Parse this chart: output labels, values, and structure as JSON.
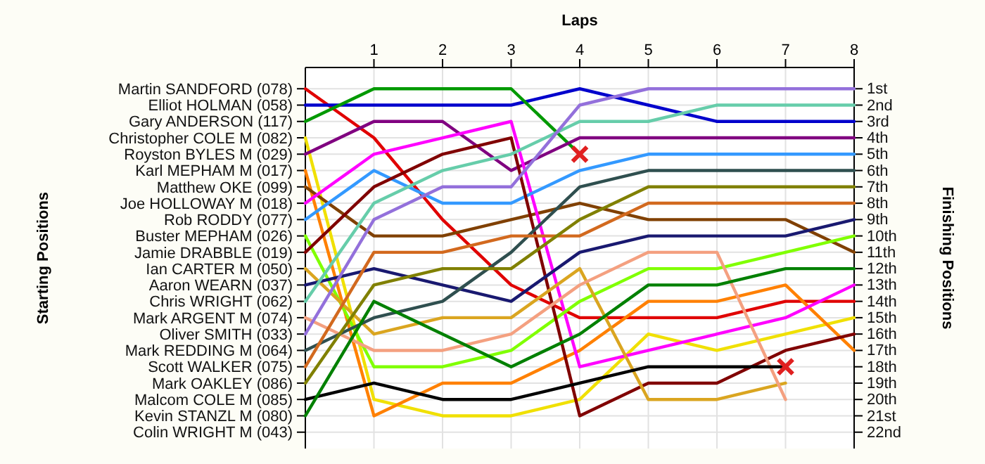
{
  "chart_data": {
    "type": "line",
    "xlabel": "Laps",
    "ylabel": "Finishing Positions",
    "x": [
      0,
      1,
      2,
      3,
      4,
      5,
      6,
      7,
      8
    ],
    "xlim": [
      0,
      8
    ],
    "xticks": [
      1,
      2,
      3,
      4,
      5,
      6,
      7,
      8
    ],
    "annotations": [
      "Starting Positions",
      "Martin SANDFORD (078)",
      "Elliot HOLMAN (058)",
      "Gary ANDERSON (117)",
      "Christopher COLE M (082)",
      "Royston BYLES M (029)",
      "Karl MEPHAM M (017)",
      "Matthew OKE (099)",
      "Joe HOLLOWAY M (018)",
      "Rob RODDY (077)",
      "Buster MEPHAM (026)",
      "Jamie DRABBLE (019)",
      "Ian CARTER M (050)",
      "Aaron WEARN (037)",
      "Chris WRIGHT (062)",
      "Mark ARGENT M (074)",
      "Oliver SMITH (033)",
      "Mark REDDING M (064)",
      "Scott WALKER (075)",
      "Mark OAKLEY (086)",
      "Malcom COLE M (085)",
      "Kevin STANZL M (080)",
      "Colin WRIGHT M (043)"
    ],
    "ylim": [
      23,
      -0.3
    ],
    "yticks": [
      {
        "value": 1,
        "label": "1st"
      },
      {
        "value": 2,
        "label": "2nd"
      },
      {
        "value": 3,
        "label": "3rd"
      },
      {
        "value": 4,
        "label": "4th"
      },
      {
        "value": 5,
        "label": "5th"
      },
      {
        "value": 6,
        "label": "6th"
      },
      {
        "value": 7,
        "label": "7th"
      },
      {
        "value": 8,
        "label": "8th"
      },
      {
        "value": 9,
        "label": "9th"
      },
      {
        "value": 10,
        "label": "10th"
      },
      {
        "value": 11,
        "label": "11th"
      },
      {
        "value": 12,
        "label": "12th"
      },
      {
        "value": 13,
        "label": "13th"
      },
      {
        "value": 14,
        "label": "14th"
      },
      {
        "value": 15,
        "label": "15th"
      },
      {
        "value": 16,
        "label": "16th"
      },
      {
        "value": 17,
        "label": "17th"
      },
      {
        "value": 18,
        "label": "18th"
      },
      {
        "value": 19,
        "label": "19th"
      },
      {
        "value": 20,
        "label": "20th"
      },
      {
        "value": 21,
        "label": "21st"
      },
      {
        "value": 22,
        "label": "22nd"
      }
    ],
    "grid": true,
    "series": [
      {
        "color": "#e00000",
        "values": [
          1,
          4,
          9,
          13,
          15,
          15,
          15,
          14,
          14
        ]
      },
      {
        "color": "#0000cc",
        "values": [
          2,
          2,
          2,
          2,
          1,
          2,
          3,
          3,
          3
        ]
      },
      {
        "color": "#009900",
        "values": [
          3,
          1,
          1,
          1,
          5,
          null,
          null,
          null,
          null
        ]
      },
      {
        "color": "#f0e000",
        "values": [
          4,
          20,
          21,
          21,
          20,
          16,
          17,
          16,
          15
        ]
      },
      {
        "color": "#800080",
        "values": [
          5,
          3,
          3,
          6,
          4,
          4,
          4,
          4,
          4
        ]
      },
      {
        "color": "#ff8000",
        "values": [
          6,
          21,
          19,
          19,
          17,
          14,
          14,
          13,
          17
        ]
      },
      {
        "color": "#804000",
        "values": [
          7,
          10,
          10,
          9,
          8,
          9,
          9,
          9,
          11
        ]
      },
      {
        "color": "#ff00ff",
        "values": [
          8,
          5,
          4,
          3,
          18,
          17,
          16,
          15,
          13
        ]
      },
      {
        "color": "#3399ff",
        "values": [
          9,
          6,
          8,
          8,
          6,
          5,
          5,
          5,
          5
        ]
      },
      {
        "color": "#80ff00",
        "values": [
          10,
          18,
          18,
          17,
          14,
          12,
          12,
          11,
          10
        ]
      },
      {
        "color": "#800000",
        "values": [
          11,
          7,
          5,
          4,
          21,
          19,
          19,
          17,
          16
        ]
      },
      {
        "color": "#daa520",
        "values": [
          12,
          16,
          15,
          15,
          12,
          20,
          20,
          19,
          null
        ]
      },
      {
        "color": "#191970",
        "values": [
          13,
          12,
          13,
          14,
          11,
          10,
          10,
          10,
          9
        ]
      },
      {
        "color": "#66cdaa",
        "values": [
          14,
          8,
          6,
          5,
          3,
          3,
          2,
          2,
          2
        ]
      },
      {
        "color": "#f4a080",
        "values": [
          15,
          17,
          17,
          16,
          13,
          11,
          11,
          20,
          null
        ]
      },
      {
        "color": "#9370db",
        "values": [
          16,
          9,
          7,
          7,
          2,
          1,
          1,
          1,
          1
        ]
      },
      {
        "color": "#2f4f4f",
        "values": [
          17,
          15,
          14,
          11,
          7,
          6,
          6,
          6,
          6
        ]
      },
      {
        "color": "#d2691e",
        "values": [
          18,
          11,
          11,
          10,
          10,
          8,
          8,
          8,
          8
        ]
      },
      {
        "color": "#808000",
        "values": [
          19,
          13,
          12,
          12,
          9,
          7,
          7,
          7,
          7
        ]
      },
      {
        "color": "#000000",
        "values": [
          20,
          19,
          20,
          20,
          19,
          18,
          18,
          18,
          null
        ]
      },
      {
        "color": "#008000",
        "values": [
          21,
          14,
          16,
          18,
          16,
          13,
          13,
          12,
          12
        ]
      },
      {
        "type": "scatter",
        "marker": "cross",
        "color": "#e02020",
        "x": [
          4,
          7
        ],
        "values": [
          5,
          18
        ]
      }
    ]
  }
}
